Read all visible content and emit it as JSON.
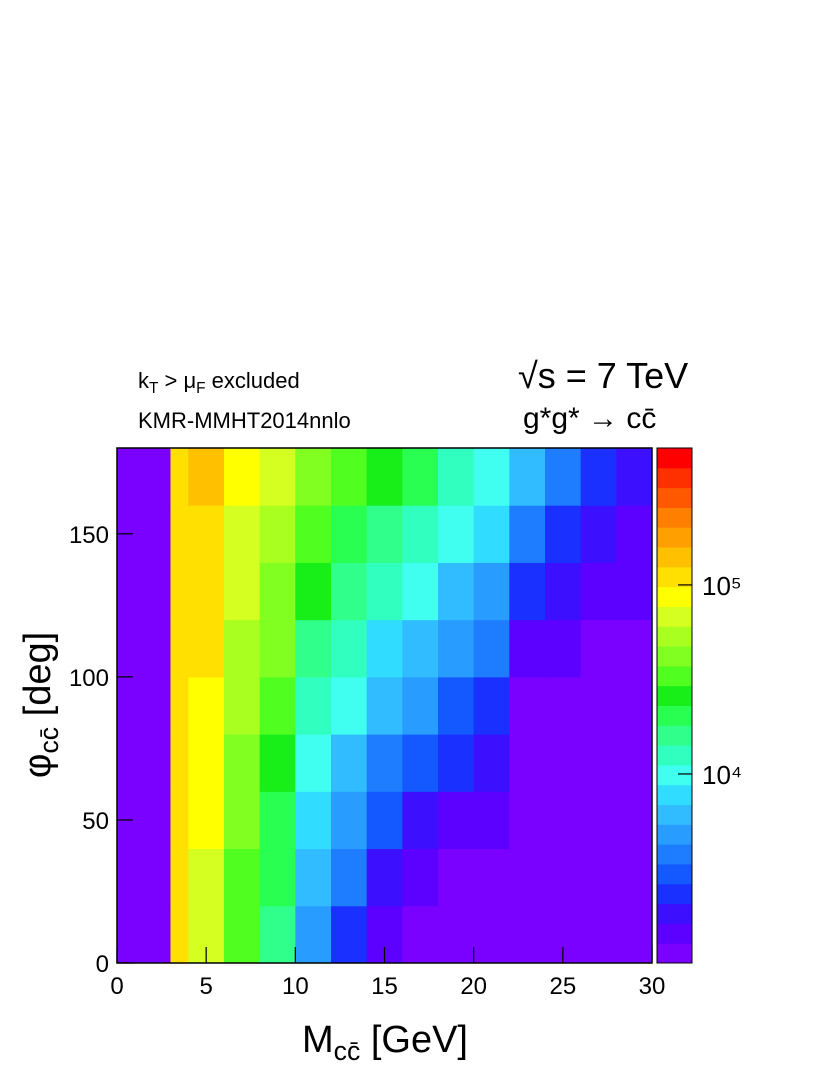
{
  "chart_data": {
    "type": "heatmap",
    "annotations": [
      [
        {
          "t": "k"
        },
        {
          "t": "T",
          "s": "sub"
        },
        {
          "t": " > μ"
        },
        {
          "t": "F",
          "s": "sub"
        },
        {
          "t": " excluded"
        }
      ],
      [
        {
          "t": "KMR-MMHT2014nnlo"
        }
      ],
      [
        {
          "t": "√s = 7 TeV"
        }
      ],
      [
        {
          "t": "g*g* → cc̄"
        }
      ]
    ],
    "xlabel": [
      {
        "t": "M"
      },
      {
        "t": "cc̄",
        "s": "sub"
      },
      {
        "t": "   [GeV]"
      }
    ],
    "ylabel": [
      {
        "t": "φ"
      },
      {
        "t": "cc̄",
        "s": "sub"
      },
      {
        "t": "   [deg]"
      }
    ],
    "xlim": [
      0,
      30
    ],
    "ylim": [
      0,
      180
    ],
    "xticks": [
      0,
      5,
      10,
      15,
      20,
      25,
      30
    ],
    "yticks": [
      0,
      50,
      100,
      150
    ],
    "xbins": [
      0,
      3,
      4,
      6,
      8,
      10,
      12,
      14,
      16,
      18,
      20,
      22,
      24,
      26,
      28,
      30
    ],
    "ybins": [
      0,
      20,
      40,
      60,
      80,
      100,
      120,
      140,
      160,
      180
    ],
    "z": [
      [
        0,
        100000,
        63000,
        32000,
        16000,
        5000,
        2500,
        1300,
        1000,
        790,
        630,
        630,
        630,
        630,
        630
      ],
      [
        0,
        100000,
        71000,
        35000,
        20000,
        6300,
        3500,
        1800,
        1400,
        1100,
        890,
        630,
        630,
        630,
        630
      ],
      [
        0,
        100000,
        79000,
        40000,
        22000,
        7900,
        5000,
        2800,
        2000,
        1600,
        1300,
        710,
        710,
        710,
        630
      ],
      [
        0,
        100000,
        79000,
        45000,
        28000,
        11000,
        6300,
        4000,
        3200,
        2200,
        1800,
        890,
        790,
        790,
        710
      ],
      [
        0,
        100000,
        89000,
        50000,
        32000,
        14000,
        8900,
        5600,
        4500,
        3200,
        2500,
        1100,
        1000,
        890,
        790
      ],
      [
        0,
        100000,
        100000,
        56000,
        40000,
        18000,
        13000,
        7900,
        6300,
        4500,
        3500,
        1600,
        1300,
        1100,
        890
      ],
      [
        0,
        100000,
        100000,
        63000,
        45000,
        25000,
        18000,
        13000,
        10000,
        6300,
        5000,
        2200,
        1800,
        1400,
        1300
      ],
      [
        0,
        100000,
        110000,
        71000,
        56000,
        32000,
        22000,
        18000,
        14000,
        8900,
        7100,
        3500,
        2500,
        1800,
        1600
      ],
      [
        0,
        100000,
        130000,
        79000,
        63000,
        40000,
        32000,
        25000,
        20000,
        13000,
        10000,
        6300,
        4000,
        2500,
        2000
      ]
    ],
    "zlim": [
      1000,
      530000
    ],
    "zlog": true,
    "zticks": [
      {
        "value": 10000,
        "label": "10⁴"
      },
      {
        "value": 100000,
        "label": "10⁵"
      }
    ],
    "palette": [
      "#7a00ff",
      "#5c00ff",
      "#3c10ff",
      "#1a30ff",
      "#1458ff",
      "#1e7cff",
      "#289cff",
      "#30bcff",
      "#30dcff",
      "#40fff0",
      "#30ffc0",
      "#30ff8c",
      "#28ff50",
      "#18ee18",
      "#50ff20",
      "#80ff20",
      "#a8ff20",
      "#d4ff20",
      "#ffff00",
      "#ffe000",
      "#ffc000",
      "#ffa000",
      "#ff8000",
      "#ff5800",
      "#ff3000",
      "#ff0000"
    ]
  }
}
